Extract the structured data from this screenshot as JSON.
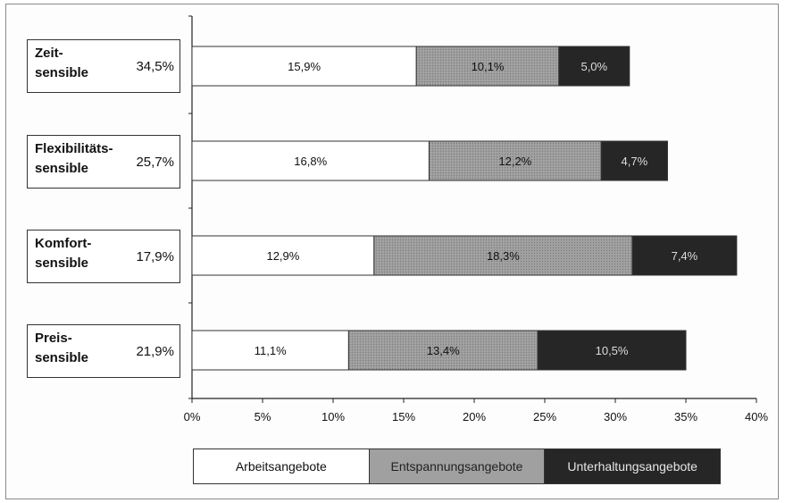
{
  "colors": {
    "arbeit": "#ffffff",
    "entspannung": "#9d9d9d",
    "unterhaltung": "#262626",
    "axis": "#222222",
    "label_dark": "#111111",
    "label_light": "#dddddd"
  },
  "chart_data": {
    "type": "bar",
    "orientation": "horizontal",
    "stacked": true,
    "categories": [
      {
        "name": "Zeit-\nsensible",
        "share": "34,5%"
      },
      {
        "name": "Flexibilitäts-\nsensible",
        "share": "25,7%"
      },
      {
        "name": "Komfort-\nsensible",
        "share": "17,9%"
      },
      {
        "name": "Preis-\nsensible",
        "share": "21,9%"
      }
    ],
    "series": [
      {
        "name": "Arbeitsangebote",
        "values": [
          15.9,
          16.8,
          12.9,
          11.1
        ],
        "labels": [
          "15,9%",
          "16,8%",
          "12,9%",
          "11,1%"
        ]
      },
      {
        "name": "Entspannungsangebote",
        "values": [
          10.1,
          12.2,
          18.3,
          13.4
        ],
        "labels": [
          "10,1%",
          "12,2%",
          "18,3%",
          "13,4%"
        ]
      },
      {
        "name": "Unterhaltungsangebote",
        "values": [
          5.0,
          4.7,
          7.4,
          10.5
        ],
        "labels": [
          "5,0%",
          "4,7%",
          "7,4%",
          "10,5%"
        ]
      }
    ],
    "xlim": [
      0,
      40
    ],
    "xticks": [
      0,
      5,
      10,
      15,
      20,
      25,
      30,
      35,
      40
    ],
    "xtick_labels": [
      "0%",
      "5%",
      "10%",
      "15%",
      "20%",
      "25%",
      "30%",
      "35%",
      "40%"
    ],
    "legend_position": "bottom"
  }
}
